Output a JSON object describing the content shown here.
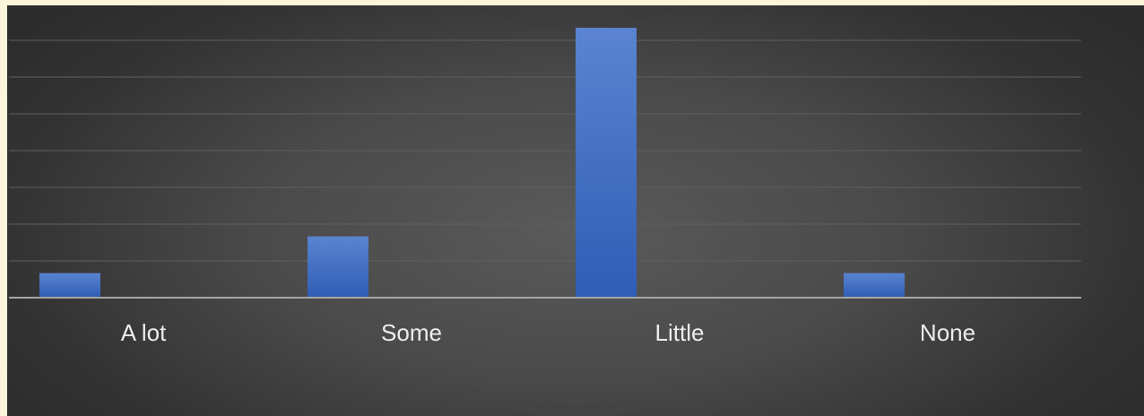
{
  "chart_data": {
    "type": "bar",
    "categories": [
      "A lot",
      "Some",
      "Little",
      "None"
    ],
    "series": [
      {
        "values": [
          1,
          2.5,
          11,
          1
        ]
      }
    ],
    "ylim": [
      0,
      11
    ],
    "grid": true,
    "legend": "none",
    "bar_color": "#4472c4",
    "grid_color": "#5f5f5f",
    "axis_color": "#a6a6a6",
    "label_color": "#ededed"
  }
}
